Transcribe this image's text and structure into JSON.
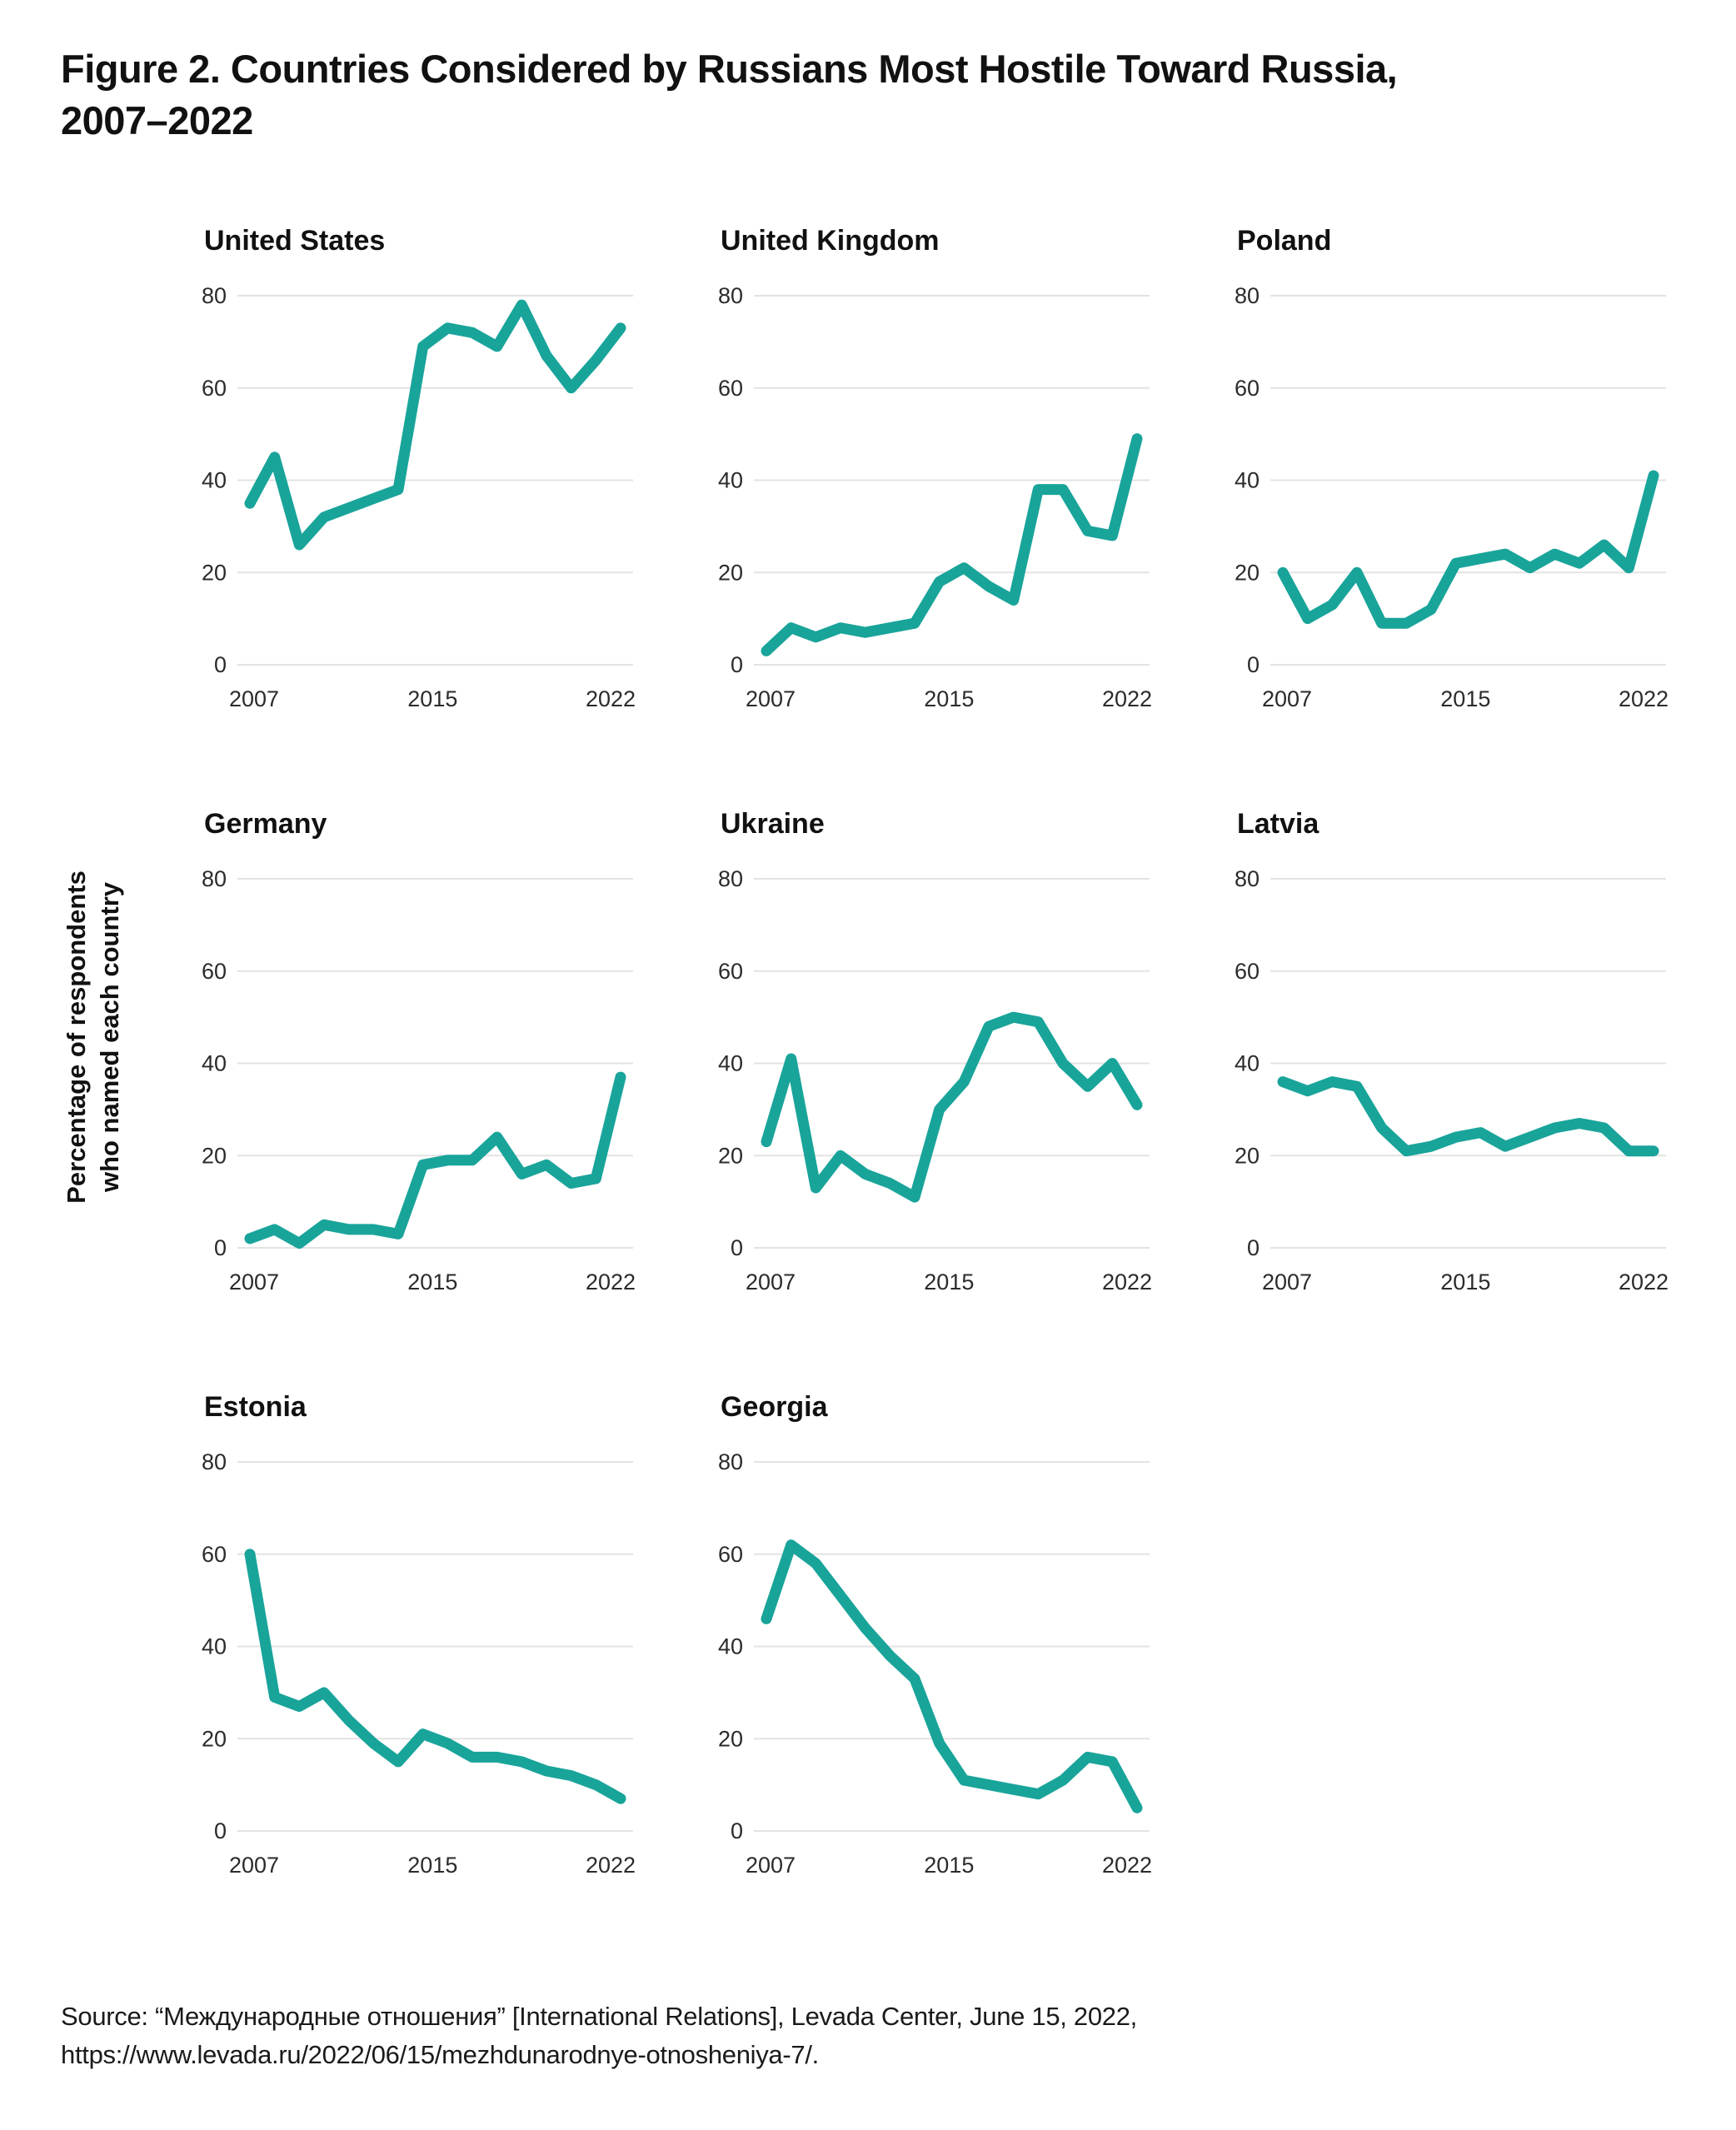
{
  "page": {
    "title_line1": "Figure 2. Countries Considered by Russians Most Hostile Toward Russia,",
    "title_line2": "2007–2022"
  },
  "y_axis": {
    "label_line1": "Percentage of respondents",
    "label_line2": "who named each country"
  },
  "source": {
    "line1": "Source: “Международные отношения” [International Relations], Levada Center, June 15, 2022,",
    "line2": "https://www.levada.ru/2022/06/15/mezhdunarodnye-otnosheniya-7/."
  },
  "colors": {
    "line": "#19A49A",
    "grid": "#E3E3E3",
    "title_text": "#111111",
    "tick_text": "#2B2B2B"
  },
  "chart_data": [
    {
      "type": "line",
      "title": "United States",
      "x": [
        2007,
        2008,
        2009,
        2010,
        2011,
        2012,
        2013,
        2014,
        2015,
        2016,
        2017,
        2018,
        2019,
        2020,
        2021,
        2022
      ],
      "values": [
        35,
        45,
        26,
        32,
        34,
        36,
        38,
        69,
        73,
        72,
        69,
        78,
        67,
        60,
        66,
        73
      ],
      "xlabel": "",
      "ylabel": "Percentage of respondents who named each country",
      "ylim": [
        0,
        80
      ],
      "yticks": [
        0,
        20,
        40,
        60,
        80
      ],
      "xticks": [
        2007,
        2015,
        2022
      ],
      "grid": true,
      "legend": "none"
    },
    {
      "type": "line",
      "title": "United Kingdom",
      "x": [
        2007,
        2008,
        2009,
        2010,
        2011,
        2012,
        2013,
        2014,
        2015,
        2016,
        2017,
        2018,
        2019,
        2020,
        2021,
        2022
      ],
      "values": [
        3,
        8,
        6,
        8,
        7,
        8,
        9,
        18,
        21,
        17,
        14,
        38,
        38,
        29,
        28,
        49
      ],
      "xlabel": "",
      "ylabel": "Percentage of respondents who named each country",
      "ylim": [
        0,
        80
      ],
      "yticks": [
        0,
        20,
        40,
        60,
        80
      ],
      "xticks": [
        2007,
        2015,
        2022
      ],
      "grid": true,
      "legend": "none"
    },
    {
      "type": "line",
      "title": "Poland",
      "x": [
        2007,
        2008,
        2009,
        2010,
        2011,
        2012,
        2013,
        2014,
        2015,
        2016,
        2017,
        2018,
        2019,
        2020,
        2021,
        2022
      ],
      "values": [
        20,
        10,
        13,
        20,
        9,
        9,
        12,
        22,
        23,
        24,
        21,
        24,
        22,
        26,
        21,
        41
      ],
      "xlabel": "",
      "ylabel": "Percentage of respondents who named each country",
      "ylim": [
        0,
        80
      ],
      "yticks": [
        0,
        20,
        40,
        60,
        80
      ],
      "xticks": [
        2007,
        2015,
        2022
      ],
      "grid": true,
      "legend": "none"
    },
    {
      "type": "line",
      "title": "Germany",
      "x": [
        2007,
        2008,
        2009,
        2010,
        2011,
        2012,
        2013,
        2014,
        2015,
        2016,
        2017,
        2018,
        2019,
        2020,
        2021,
        2022
      ],
      "values": [
        2,
        4,
        1,
        5,
        4,
        4,
        3,
        18,
        19,
        19,
        24,
        16,
        18,
        14,
        15,
        37
      ],
      "xlabel": "",
      "ylabel": "Percentage of respondents who named each country",
      "ylim": [
        0,
        80
      ],
      "yticks": [
        0,
        20,
        40,
        60,
        80
      ],
      "xticks": [
        2007,
        2015,
        2022
      ],
      "grid": true,
      "legend": "none"
    },
    {
      "type": "line",
      "title": "Ukraine",
      "x": [
        2007,
        2008,
        2009,
        2010,
        2011,
        2012,
        2013,
        2014,
        2015,
        2016,
        2017,
        2018,
        2019,
        2020,
        2021,
        2022
      ],
      "values": [
        23,
        41,
        13,
        20,
        16,
        14,
        11,
        30,
        36,
        48,
        50,
        49,
        40,
        35,
        40,
        31
      ],
      "xlabel": "",
      "ylabel": "Percentage of respondents who named each country",
      "ylim": [
        0,
        80
      ],
      "yticks": [
        0,
        20,
        40,
        60,
        80
      ],
      "xticks": [
        2007,
        2015,
        2022
      ],
      "grid": true,
      "legend": "none"
    },
    {
      "type": "line",
      "title": "Latvia",
      "x": [
        2007,
        2008,
        2009,
        2010,
        2011,
        2012,
        2013,
        2014,
        2015,
        2016,
        2017,
        2018,
        2019,
        2020,
        2021,
        2022
      ],
      "values": [
        36,
        34,
        36,
        35,
        26,
        21,
        22,
        24,
        25,
        22,
        24,
        26,
        27,
        26,
        21,
        21
      ],
      "xlabel": "",
      "ylabel": "Percentage of respondents who named each country",
      "ylim": [
        0,
        80
      ],
      "yticks": [
        0,
        20,
        40,
        60,
        80
      ],
      "xticks": [
        2007,
        2015,
        2022
      ],
      "grid": true,
      "legend": "none"
    },
    {
      "type": "line",
      "title": "Estonia",
      "x": [
        2007,
        2008,
        2009,
        2010,
        2011,
        2012,
        2013,
        2014,
        2015,
        2016,
        2017,
        2018,
        2019,
        2020,
        2021,
        2022
      ],
      "values": [
        60,
        29,
        27,
        30,
        24,
        19,
        15,
        21,
        19,
        16,
        16,
        15,
        13,
        12,
        10,
        7
      ],
      "xlabel": "",
      "ylabel": "Percentage of respondents who named each country",
      "ylim": [
        0,
        80
      ],
      "yticks": [
        0,
        20,
        40,
        60,
        80
      ],
      "xticks": [
        2007,
        2015,
        2022
      ],
      "grid": true,
      "legend": "none"
    },
    {
      "type": "line",
      "title": "Georgia",
      "x": [
        2007,
        2008,
        2009,
        2010,
        2011,
        2012,
        2013,
        2014,
        2015,
        2016,
        2017,
        2018,
        2019,
        2020,
        2021,
        2022
      ],
      "values": [
        46,
        62,
        58,
        51,
        44,
        38,
        33,
        19,
        11,
        10,
        9,
        8,
        11,
        16,
        15,
        5
      ],
      "xlabel": "",
      "ylabel": "Percentage of respondents who named each country",
      "ylim": [
        0,
        80
      ],
      "yticks": [
        0,
        20,
        40,
        60,
        80
      ],
      "xticks": [
        2007,
        2015,
        2022
      ],
      "grid": true,
      "legend": "none"
    }
  ]
}
